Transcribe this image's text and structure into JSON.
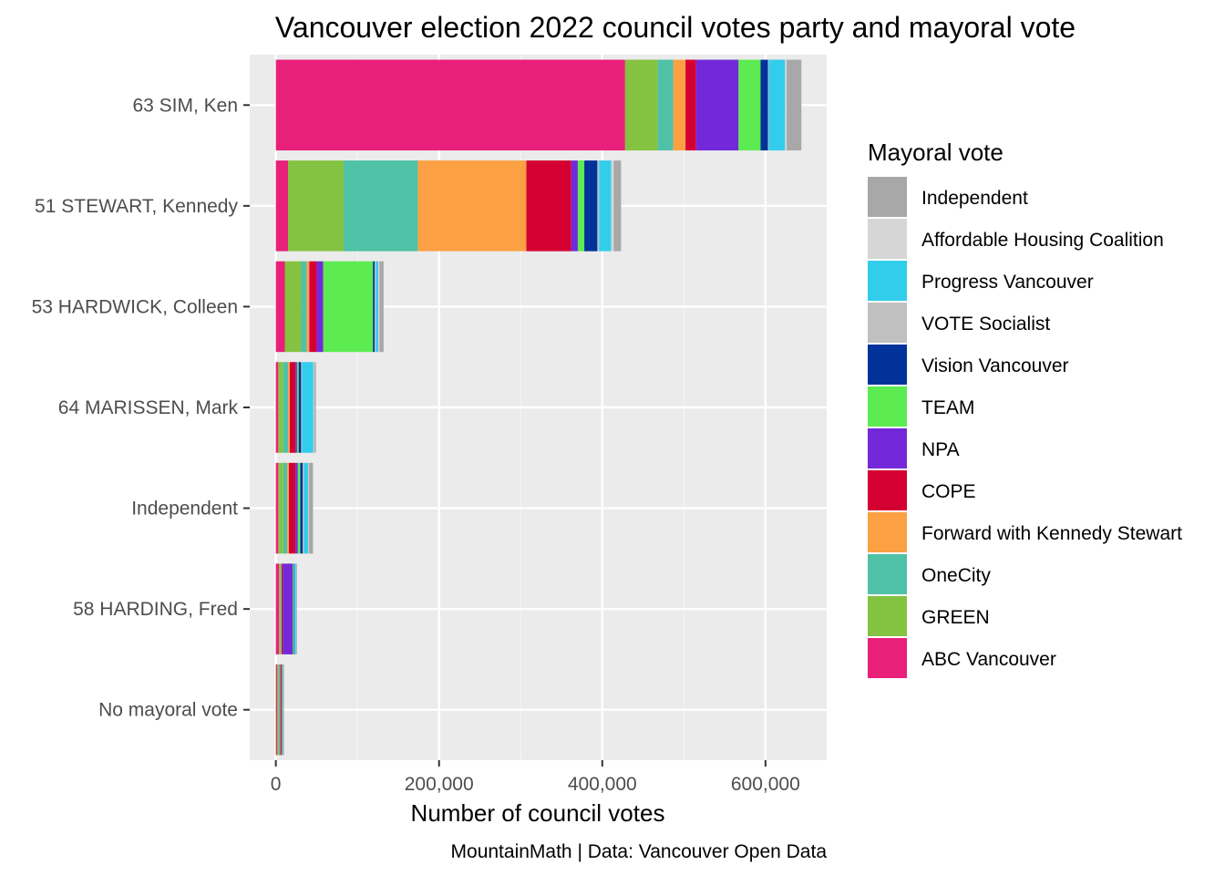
{
  "chart_data": {
    "type": "bar",
    "orientation": "horizontal",
    "stacked": true,
    "title": "Vancouver election 2022 council votes party and mayoral vote",
    "xlabel": "Number of council votes",
    "ylabel": "",
    "caption": "MountainMath | Data: Vancouver Open Data",
    "xlim": [
      -32000,
      675000
    ],
    "x_ticks": [
      0,
      200000,
      400000,
      600000
    ],
    "x_tick_labels": [
      "0",
      "200,000",
      "400,000",
      "600,000"
    ],
    "grid": true,
    "legend_position": "right",
    "legend_title": "Mayoral vote",
    "categories": [
      "63 SIM, Ken",
      "51 STEWART, Kennedy",
      "53 HARDWICK, Colleen",
      "64 MARISSEN, Mark",
      "Independent",
      "58 HARDING, Fred",
      "No mayoral vote"
    ],
    "series": [
      {
        "name": "ABC Vancouver",
        "color": "#E8207A",
        "values": [
          428000,
          15000,
          11000,
          3000,
          3000,
          4000,
          1500
        ]
      },
      {
        "name": "GREEN",
        "color": "#84C341",
        "values": [
          40000,
          68000,
          20000,
          6000,
          6000,
          1500,
          2000
        ]
      },
      {
        "name": "OneCity",
        "color": "#4FC1A6",
        "values": [
          19000,
          91000,
          7000,
          6000,
          5000,
          1000,
          1500
        ]
      },
      {
        "name": "Forward with Kennedy Stewart",
        "color": "#FBA144",
        "values": [
          15000,
          133000,
          3000,
          2000,
          2000,
          500,
          500
        ]
      },
      {
        "name": "COPE",
        "color": "#D50032",
        "values": [
          13000,
          55000,
          9000,
          7000,
          8000,
          1500,
          1000
        ]
      },
      {
        "name": "NPA",
        "color": "#7329D9",
        "values": [
          52000,
          8000,
          8000,
          2000,
          3000,
          12000,
          800
        ]
      },
      {
        "name": "TEAM",
        "color": "#5CEB51",
        "values": [
          27000,
          8000,
          61000,
          2000,
          3000,
          1000,
          800
        ]
      },
      {
        "name": "Vision Vancouver",
        "color": "#00329A",
        "values": [
          9000,
          16000,
          2000,
          3000,
          3000,
          800,
          500
        ]
      },
      {
        "name": "VOTE Socialist",
        "color": "#C0C0C0",
        "values": [
          1000,
          2000,
          1500,
          1000,
          1500,
          500,
          300
        ]
      },
      {
        "name": "Progress Vancouver",
        "color": "#33CDEC",
        "values": [
          20000,
          15000,
          3000,
          14000,
          5000,
          2000,
          300
        ]
      },
      {
        "name": "Affordable Housing Coalition",
        "color": "#D6D6D6",
        "values": [
          2000,
          3000,
          1500,
          1000,
          1000,
          300,
          200
        ]
      },
      {
        "name": "Independent",
        "color": "#A8A8A8",
        "values": [
          18000,
          9000,
          5000,
          2000,
          5000,
          800,
          500
        ]
      }
    ]
  }
}
